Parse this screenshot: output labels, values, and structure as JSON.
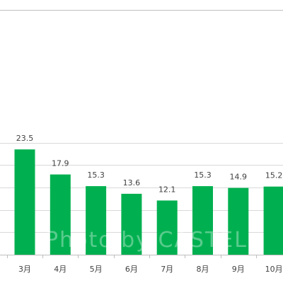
{
  "chart_data": {
    "type": "bar",
    "categories": [
      "3月",
      "4月",
      "5月",
      "6月",
      "7月",
      "8月",
      "9月",
      "10月"
    ],
    "values": [
      23.5,
      17.9,
      15.3,
      13.6,
      12.1,
      15.3,
      14.9,
      15.2
    ],
    "data_labels": [
      "23.5",
      "17.9",
      "15.3",
      "13.6",
      "12.1",
      "15.3",
      "14.9",
      "15.2"
    ],
    "ylim": [
      0,
      30
    ],
    "grid": true,
    "bar_color": "#00b050",
    "gridline_color": "#d9d9d9",
    "axis_color": "#bfbfbf",
    "text_color": "#404040"
  },
  "watermark": {
    "text": "Photo by CASTEL"
  }
}
